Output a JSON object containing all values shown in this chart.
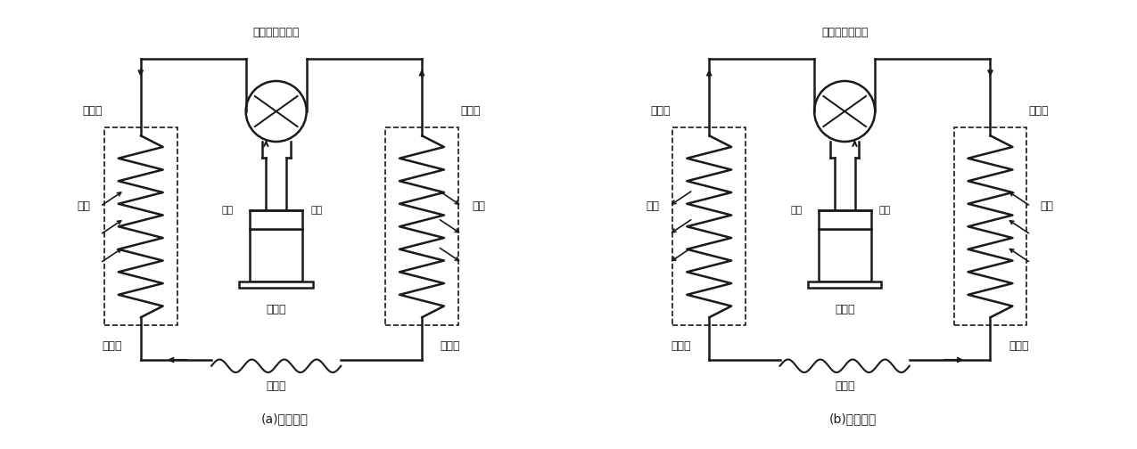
{
  "title_a": "(a)制冷工况",
  "title_b": "(b)制热工况",
  "label_valve": "电磁四通换向阀",
  "label_indoor": "室内侧",
  "label_outdoor": "室外侧",
  "label_compressor": "压缩机",
  "label_capillary": "毛细管",
  "label_high": "高压",
  "label_low": "低压",
  "label_a_left_top": "吸热",
  "label_a_left_bot": "蒸发器",
  "label_a_right_top": "放热",
  "label_a_right_bot": "冷凝器",
  "label_b_left_top": "放热",
  "label_b_left_bot": "冷凝器",
  "label_b_right_top": "吸热",
  "label_b_right_bot": "蒸发器",
  "bg_color": "#ffffff",
  "line_color": "#1a1a1a",
  "fontsize_label": 9,
  "fontsize_title": 10
}
